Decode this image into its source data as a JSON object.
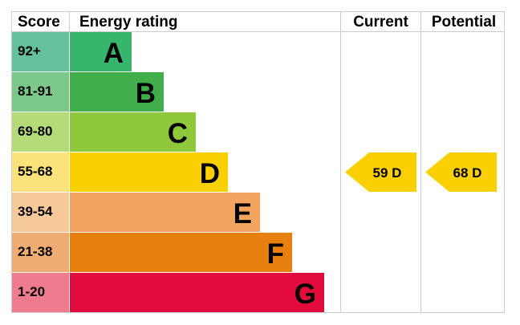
{
  "headers": {
    "score": "Score",
    "energy_rating": "Energy rating",
    "current": "Current",
    "potential": "Potential"
  },
  "chart_data": {
    "type": "bar",
    "bands": [
      {
        "letter": "A",
        "score": "92+",
        "score_color": "#64c19b",
        "bar_color": "#36b56d",
        "level": 1
      },
      {
        "letter": "B",
        "score": "81-91",
        "score_color": "#7cc88a",
        "bar_color": "#3fae4b",
        "level": 2
      },
      {
        "letter": "C",
        "score": "69-80",
        "score_color": "#b4da7a",
        "bar_color": "#90c83c",
        "level": 3
      },
      {
        "letter": "D",
        "score": "55-68",
        "score_color": "#fbe27a",
        "bar_color": "#fad000",
        "level": 4
      },
      {
        "letter": "E",
        "score": "39-54",
        "score_color": "#f6c99b",
        "bar_color": "#f2a55e",
        "level": 5
      },
      {
        "letter": "F",
        "score": "21-38",
        "score_color": "#f0ad73",
        "bar_color": "#e8800f",
        "level": 6
      },
      {
        "letter": "G",
        "score": "1-20",
        "score_color": "#ee7b8e",
        "bar_color": "#e10b3c",
        "level": 7
      }
    ],
    "current": {
      "value": 59,
      "letter": "D",
      "label": "59  D",
      "color": "#fad000"
    },
    "potential": {
      "value": 68,
      "letter": "D",
      "label": "68  D",
      "color": "#fad000"
    }
  }
}
